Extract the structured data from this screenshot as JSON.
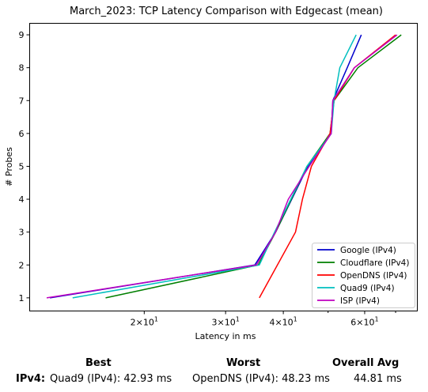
{
  "chart_data": {
    "type": "line",
    "title": "March_2023: TCP Latency Comparison with Edgecast (mean)",
    "xlabel": "Latency in ms",
    "ylabel": "# Probes",
    "xscale": "log",
    "xlim": [
      11.3,
      78
    ],
    "ylim": [
      0.6,
      9.35
    ],
    "xticks": [
      {
        "value": 20,
        "base": "2",
        "exp": "1"
      },
      {
        "value": 30,
        "base": "3",
        "exp": "1"
      },
      {
        "value": 40,
        "base": "4",
        "exp": "1"
      },
      {
        "value": 60,
        "base": "6",
        "exp": "1"
      }
    ],
    "xtick_mult": "×",
    "xtick_exp_base": "10",
    "yticks": [
      "1",
      "2",
      "3",
      "4",
      "5",
      "6",
      "7",
      "8",
      "9"
    ],
    "grid": false,
    "legend_position": "lower-right",
    "series": [
      {
        "name": "Google (IPv4)",
        "color": "#0000cc",
        "x": [
          12.5,
          34.7,
          38.5,
          45.2,
          50.8,
          51.2,
          55.0,
          59.0
        ],
        "y": [
          1,
          2,
          3,
          5,
          6,
          7,
          8,
          9
        ]
      },
      {
        "name": "Cloudflare (IPv4)",
        "color": "#007f00",
        "x": [
          16.5,
          35.3,
          38.5,
          45.0,
          50.5,
          51.5,
          58.0,
          72.0
        ],
        "y": [
          1,
          2,
          3,
          5,
          6,
          7,
          8,
          9
        ]
      },
      {
        "name": "OpenDNS (IPv4)",
        "color": "#ff0000",
        "x": [
          35.5,
          42.5,
          44.0,
          46.0,
          50.5,
          51.5,
          57.0,
          70.0
        ],
        "y": [
          1,
          3,
          4,
          5,
          6,
          7,
          8,
          9
        ]
      },
      {
        "name": "Quad9 (IPv4)",
        "color": "#00bfbf",
        "x": [
          14.0,
          35.5,
          38.3,
          45.0,
          50.8,
          51.5,
          53.0,
          57.5
        ],
        "y": [
          1,
          2,
          3,
          5,
          6,
          7,
          8,
          9
        ]
      },
      {
        "name": "ISP (IPv4)",
        "color": "#bf00bf",
        "x": [
          12.3,
          35.0,
          38.5,
          41.0,
          45.5,
          50.8,
          51.2,
          57.0,
          70.5
        ],
        "y": [
          1,
          2,
          3,
          4,
          5,
          6,
          7,
          8,
          9
        ]
      }
    ]
  },
  "summary": {
    "best_header": "Best",
    "worst_header": "Worst",
    "avg_header": "Overall Avg",
    "row_label": "IPv4:",
    "best_value": "Quad9 (IPv4): 42.93 ms",
    "worst_value": "OpenDNS (IPv4): 48.23 ms",
    "avg_value": "44.81 ms"
  }
}
